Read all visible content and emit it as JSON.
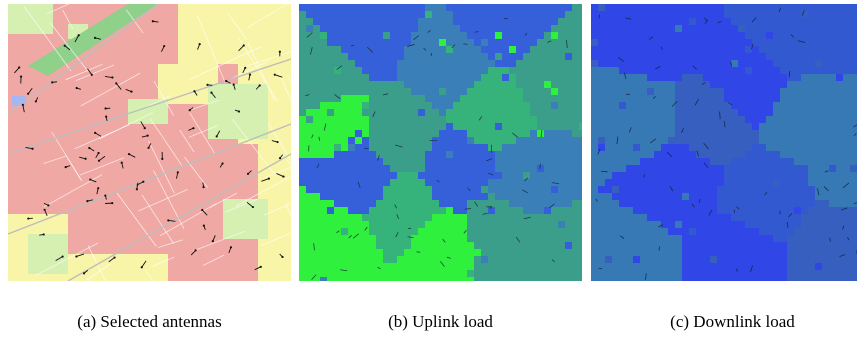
{
  "figures": [
    {
      "caption": "(a) Selected antennas",
      "colors": {
        "urban": "#f0a8a4",
        "open": "#f8f5a8",
        "green": "#d6f0b2",
        "water": "#a6b6f2",
        "road": "#bdbdbd",
        "antenna": "#111111"
      }
    },
    {
      "caption": "(b) Uplink load",
      "colors": {
        "low": "#3560d9",
        "mid": "#3a9e8a",
        "high": "#2ff03c",
        "antenna": "#1a2a3a"
      }
    },
    {
      "caption": "(c) Downlink load",
      "colors": {
        "low": "#3146e6",
        "mid": "#3779b5",
        "antenna": "#14213a"
      }
    }
  ]
}
